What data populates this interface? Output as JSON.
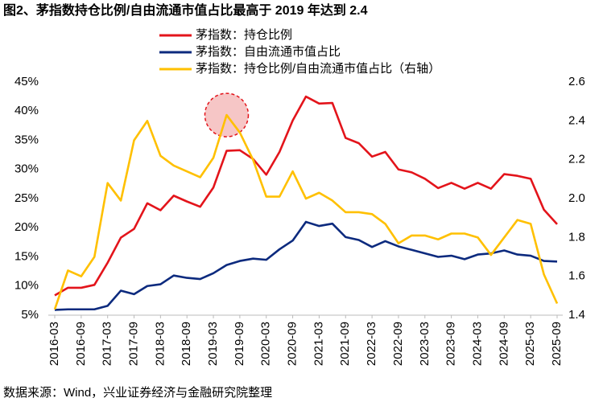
{
  "chart_data": {
    "type": "line",
    "title": "图2、茅指数持仓比例/自由流通市值占比最高于 2019 年达到 2.4",
    "source": "数据来源：Wind，兴业证券经济与金融研究院整理",
    "categories": [
      "2016-03",
      null,
      "2016-09",
      null,
      "2017-03",
      null,
      "2017-09",
      null,
      "2018-03",
      null,
      "2018-09",
      null,
      "2019-03",
      null,
      "2019-09",
      null,
      "2020-03",
      null,
      "2020-09",
      null,
      "2021-03",
      null,
      "2021-09",
      null,
      "2022-03",
      null,
      "2022-09",
      null,
      "2023-03",
      null,
      "2023-09",
      null,
      "2024-03",
      null,
      "2024-09",
      null,
      "2025-03",
      null,
      "2025-09"
    ],
    "series": [
      {
        "name": "茅指数：持仓比例",
        "color": "#e3141b",
        "values": [
          8.4,
          9.7,
          9.7,
          10.2,
          14.0,
          18.3,
          19.8,
          24.2,
          23.0,
          25.5,
          24.5,
          23.6,
          26.9,
          33.2,
          33.3,
          31.8,
          29.1,
          33.0,
          38.4,
          42.5,
          41.3,
          41.4,
          35.4,
          34.5,
          32.2,
          33.0,
          30.0,
          29.5,
          28.4,
          26.8,
          27.7,
          26.7,
          27.7,
          26.7,
          29.2,
          28.9,
          28.4,
          23.1,
          20.6
        ]
      },
      {
        "name": "茅指数：自由流通市值占比",
        "color": "#0c2a7e",
        "values": [
          5.9,
          6.0,
          6.0,
          6.0,
          6.6,
          9.2,
          8.6,
          10.0,
          10.3,
          11.8,
          11.4,
          11.2,
          12.2,
          13.6,
          14.3,
          14.7,
          14.5,
          16.3,
          17.8,
          21.0,
          20.3,
          20.7,
          18.4,
          17.9,
          16.7,
          17.7,
          16.8,
          16.2,
          15.6,
          15.0,
          15.2,
          14.6,
          15.4,
          15.6,
          16.1,
          15.4,
          15.2,
          14.3,
          14.2
        ]
      },
      {
        "name": "茅指数：持仓比例/自由流通市值占比（右轴）",
        "color": "#ffc000",
        "axis": "y2",
        "values": [
          1.43,
          1.63,
          1.6,
          1.7,
          2.08,
          1.99,
          2.3,
          2.4,
          2.22,
          2.17,
          2.14,
          2.11,
          2.21,
          2.43,
          2.34,
          2.2,
          2.01,
          2.01,
          2.14,
          2.0,
          2.03,
          1.99,
          1.93,
          1.93,
          1.92,
          1.87,
          1.77,
          1.81,
          1.81,
          1.79,
          1.82,
          1.82,
          1.8,
          1.71,
          1.8,
          1.89,
          1.87,
          1.61,
          1.46
        ]
      }
    ],
    "ylim": [
      5,
      45
    ],
    "yticks": [
      {
        "value": 5,
        "label": "5%"
      },
      {
        "value": 10,
        "label": "10%"
      },
      {
        "value": 15,
        "label": "15%"
      },
      {
        "value": 20,
        "label": "20%"
      },
      {
        "value": 25,
        "label": "25%"
      },
      {
        "value": 30,
        "label": "30%"
      },
      {
        "value": 35,
        "label": "35%"
      },
      {
        "value": 40,
        "label": "40%"
      },
      {
        "value": 45,
        "label": "45%"
      }
    ],
    "y2lim": [
      1.4,
      2.6
    ],
    "y2ticks": [
      1.4,
      1.6,
      1.8,
      {
        "value": 2,
        "label": "2.0"
      },
      2.2,
      2.4,
      2.6
    ],
    "legend": "upper-left",
    "grid": false
  }
}
